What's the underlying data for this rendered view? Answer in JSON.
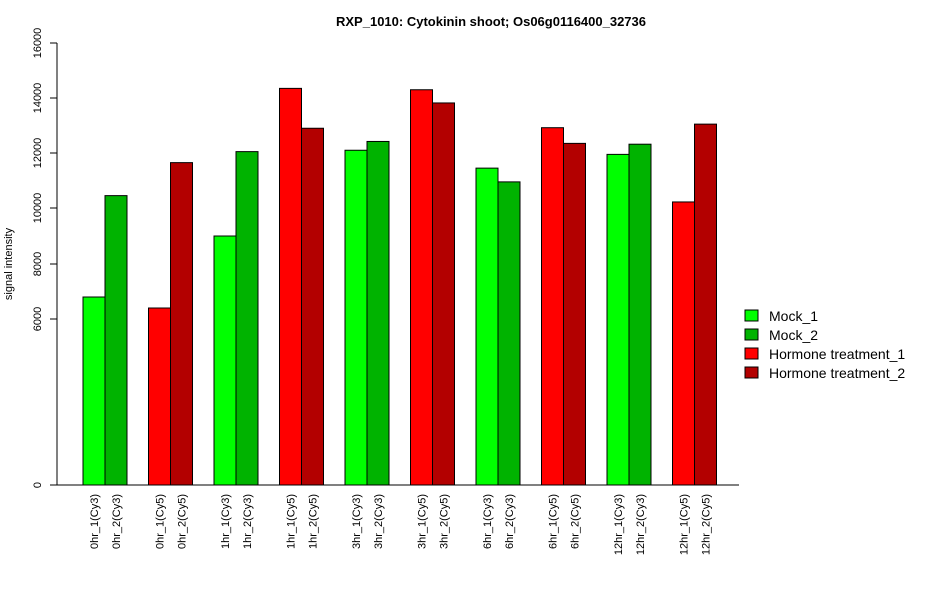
{
  "chart_data": {
    "type": "bar",
    "title": "RXP_1010: Cytokinin shoot; Os06g0116400_32736",
    "xlabel": "",
    "ylabel": "signal intensity",
    "y_ticks": [
      0,
      6000,
      8000,
      10000,
      12000,
      14000,
      16000
    ],
    "categories": [
      "0hr_1(Cy3)",
      "0hr_2(Cy3)",
      "0hr_1(Cy5)",
      "0hr_2(Cy5)",
      "1hr_1(Cy3)",
      "1hr_2(Cy3)",
      "1hr_1(Cy5)",
      "1hr_2(Cy5)",
      "3hr_1(Cy3)",
      "3hr_2(Cy3)",
      "3hr_1(Cy5)",
      "3hr_2(Cy5)",
      "6hr_1(Cy3)",
      "6hr_2(Cy3)",
      "6hr_1(Cy5)",
      "6hr_2(Cy5)",
      "12hr_1(Cy3)",
      "12hr_2(Cy3)",
      "12hr_1(Cy5)",
      "12hr_2(Cy5)"
    ],
    "values": [
      6800,
      10450,
      6400,
      11650,
      9000,
      12050,
      14350,
      12900,
      12100,
      12420,
      14300,
      13820,
      11450,
      10950,
      12920,
      12350,
      11950,
      12320,
      10220,
      13050
    ],
    "bar_series": [
      0,
      1,
      2,
      3,
      0,
      1,
      2,
      3,
      0,
      1,
      2,
      3,
      0,
      1,
      2,
      3,
      0,
      1,
      2,
      3
    ],
    "series": [
      {
        "name": "Mock_1",
        "color": "#00ff00"
      },
      {
        "name": "Mock_2",
        "color": "#00b300"
      },
      {
        "name": "Hormone treatment_1",
        "color": "#ff0000"
      },
      {
        "name": "Hormone treatment_2",
        "color": "#b30000"
      }
    ],
    "legend_position": "right",
    "grid": false
  }
}
